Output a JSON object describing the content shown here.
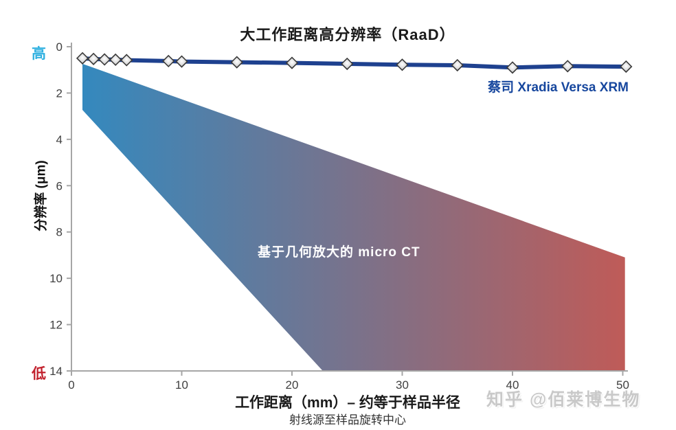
{
  "title": "大工作距离高分辨率（RaaD）",
  "labels": {
    "y_high": "高",
    "y_low": "低",
    "y_axis": "分辨率 (μm)",
    "x_axis": "工作距离（mm）– 约等于样品半径",
    "x_axis_sub": "射线源至样品旋转中心",
    "legend_line": "蔡司 Xradia Versa XRM",
    "wedge": "基于几何放大的 micro CT",
    "watermark": "知乎 @佰莱博生物"
  },
  "colors": {
    "line_blue": "#1e418f",
    "legend_blue": "#17479E",
    "wedge_left_blue": "#3489BE",
    "wedge_right_red": "#BF5B58",
    "high_cyan": "#2FB0E0",
    "low_red": "#C2222E",
    "axis_gray": "#a6a6a6",
    "tick_text_gray": "#404040",
    "marker_fill": "#d9d9d9",
    "marker_stroke": "#3a3a3a"
  },
  "chart_data": {
    "type": "line",
    "title": "大工作距离高分辨率（RaaD）",
    "xlabel": "工作距离（mm）– 约等于样品半径",
    "xlabel_sub": "射线源至样品旋转中心",
    "ylabel": "分辨率 (μm)",
    "y_axis_inverted": true,
    "xlim": [
      0,
      50.5
    ],
    "ylim": [
      0,
      14
    ],
    "x_ticks": [
      0,
      10,
      20,
      30,
      40,
      50
    ],
    "y_ticks": [
      0,
      2,
      4,
      6,
      8,
      10,
      12,
      14
    ],
    "grid": false,
    "legend_position": "right-of-line",
    "series": [
      {
        "name": "蔡司 Xradia Versa XRM",
        "type": "line",
        "marker": "diamond",
        "color": "#1e418f",
        "x": [
          1,
          2,
          3,
          4,
          5,
          8.8,
          10,
          15,
          20,
          25,
          30,
          35,
          40,
          45,
          50.3
        ],
        "y": [
          0.5,
          0.53,
          0.55,
          0.56,
          0.58,
          0.62,
          0.64,
          0.67,
          0.7,
          0.74,
          0.78,
          0.8,
          0.9,
          0.84,
          0.86
        ]
      }
    ],
    "wedge_region": {
      "name": "基于几何放大的 micro CT",
      "description": "resolution band of geometric-magnification micro CT, widening with working distance",
      "polygon_xy": [
        [
          1,
          0.74
        ],
        [
          50.2,
          9.1
        ],
        [
          50.2,
          14
        ],
        [
          22.8,
          14
        ],
        [
          1,
          2.73
        ]
      ],
      "gradient_left_to_right": [
        "#3489BE",
        "#BF5B58"
      ]
    }
  }
}
